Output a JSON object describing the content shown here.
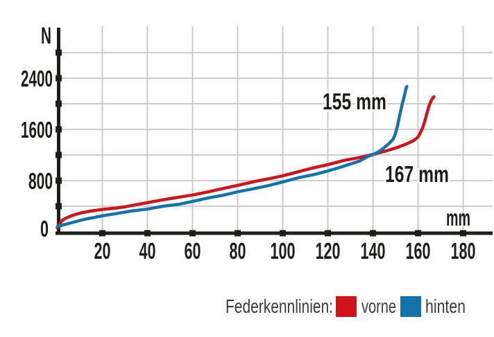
{
  "colors": {
    "vorne": "#d01419",
    "hinten": "#1374ad",
    "grid": "#c6c6c6",
    "axis": "#1d1d1b",
    "legend_text": "#3a3a38",
    "background": "#ffffff"
  },
  "axes": {
    "y_unit_label": "N",
    "x_unit_label": "mm",
    "y_tick_labels": [
      "2400",
      "1600",
      "800",
      "0"
    ],
    "x_tick_labels": [
      "20",
      "40",
      "60",
      "80",
      "100",
      "120",
      "140",
      "160",
      "180"
    ]
  },
  "annotations": {
    "hinten_max": "155 mm",
    "vorne_max": "167 mm"
  },
  "legend": {
    "title": "Federkennlinien:",
    "vorne_label": "vorne",
    "hinten_label": "hinten"
  },
  "chart_data": {
    "type": "line",
    "title": "Federkennlinien",
    "xlabel": "mm",
    "ylabel": "N",
    "xlim": [
      0,
      185
    ],
    "ylim": [
      0,
      2800
    ],
    "x_ticks": [
      20,
      40,
      60,
      80,
      100,
      120,
      140,
      160,
      180
    ],
    "y_ticks": [
      400,
      800,
      1200,
      1600,
      2000,
      2400,
      2800
    ],
    "grid": true,
    "legend_position": "bottom-right",
    "series": [
      {
        "name": "vorne",
        "color": "#d01419",
        "max_travel_mm": 167,
        "points": [
          [
            0,
            60
          ],
          [
            2,
            175
          ],
          [
            4,
            215
          ],
          [
            7,
            260
          ],
          [
            11,
            300
          ],
          [
            15,
            325
          ],
          [
            21,
            355
          ],
          [
            26,
            370
          ],
          [
            30,
            390
          ],
          [
            36,
            430
          ],
          [
            40,
            455
          ],
          [
            46,
            495
          ],
          [
            52,
            530
          ],
          [
            60,
            575
          ],
          [
            67,
            625
          ],
          [
            74,
            680
          ],
          [
            80,
            725
          ],
          [
            88,
            790
          ],
          [
            94,
            830
          ],
          [
            100,
            875
          ],
          [
            107,
            940
          ],
          [
            113,
            995
          ],
          [
            120,
            1050
          ],
          [
            127,
            1115
          ],
          [
            134,
            1160
          ],
          [
            140,
            1210
          ],
          [
            146,
            1265
          ],
          [
            151,
            1320
          ],
          [
            155,
            1375
          ],
          [
            158,
            1425
          ],
          [
            160,
            1480
          ],
          [
            161,
            1545
          ],
          [
            162,
            1620
          ],
          [
            163,
            1730
          ],
          [
            164,
            1860
          ],
          [
            165,
            1980
          ],
          [
            166,
            2060
          ],
          [
            167,
            2110
          ]
        ]
      },
      {
        "name": "hinten",
        "color": "#1374ad",
        "max_travel_mm": 155,
        "points": [
          [
            0,
            80
          ],
          [
            6,
            140
          ],
          [
            12,
            195
          ],
          [
            20,
            250
          ],
          [
            27,
            290
          ],
          [
            33,
            325
          ],
          [
            40,
            355
          ],
          [
            47,
            400
          ],
          [
            54,
            430
          ],
          [
            60,
            475
          ],
          [
            67,
            530
          ],
          [
            74,
            575
          ],
          [
            80,
            625
          ],
          [
            88,
            680
          ],
          [
            94,
            725
          ],
          [
            100,
            780
          ],
          [
            107,
            845
          ],
          [
            114,
            895
          ],
          [
            120,
            950
          ],
          [
            127,
            1025
          ],
          [
            134,
            1105
          ],
          [
            138,
            1180
          ],
          [
            141,
            1220
          ],
          [
            144,
            1285
          ],
          [
            147,
            1375
          ],
          [
            149,
            1450
          ],
          [
            150,
            1535
          ],
          [
            151,
            1675
          ],
          [
            152,
            1840
          ],
          [
            153,
            2000
          ],
          [
            154,
            2130
          ],
          [
            154.6,
            2230
          ],
          [
            155,
            2270
          ]
        ]
      }
    ]
  }
}
